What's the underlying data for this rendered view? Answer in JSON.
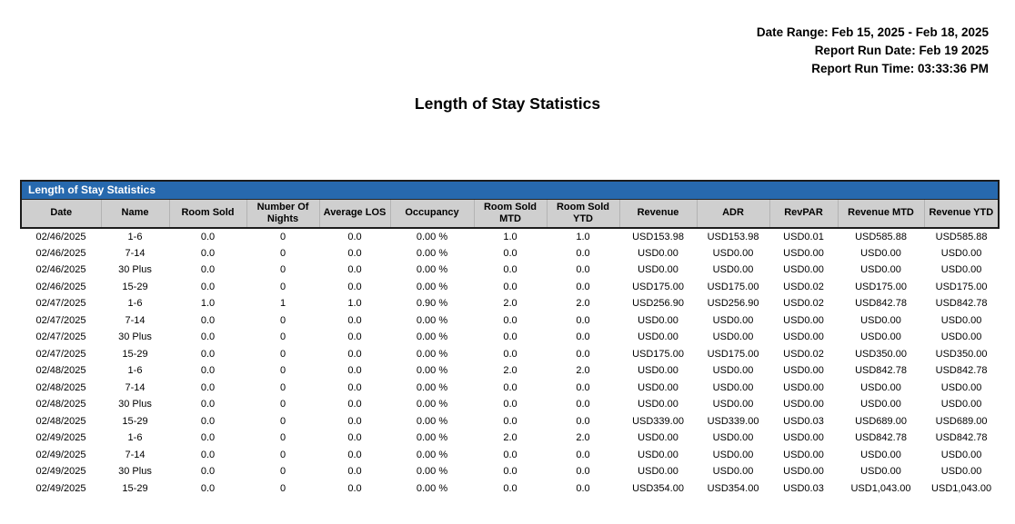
{
  "report_meta": {
    "date_range": "Date Range: Feb 15, 2025 - Feb 18, 2025",
    "run_date": "Report Run Date: Feb 19 2025",
    "run_time": "Report Run Time: 03:33:36 PM"
  },
  "page_title": "Length of Stay Statistics",
  "colors": {
    "section_bar_blue": "#2769ae",
    "column_header_gray": "#cfcfcf",
    "border_black": "#1c1c1c"
  },
  "table": {
    "section_title": "Length of Stay Statistics",
    "columns": [
      "Date",
      "Name",
      "Room Sold",
      "Number Of Nights",
      "Average LOS",
      "Occupancy",
      "Room Sold MTD",
      "Room Sold YTD",
      "Revenue",
      "ADR",
      "RevPAR",
      "Revenue MTD",
      "Revenue YTD"
    ],
    "column_keys": [
      "date",
      "name",
      "room-sold",
      "number-of-nights",
      "average-los",
      "occupancy",
      "room-sold-mtd",
      "room-sold-ytd",
      "revenue",
      "adr",
      "revpar",
      "revenue-mtd",
      "revenue-ytd"
    ],
    "rows": [
      [
        "02/46/2025",
        "1-6",
        "0.0",
        "0",
        "0.0",
        "0.00 %",
        "1.0",
        "1.0",
        "USD153.98",
        "USD153.98",
        "USD0.01",
        "USD585.88",
        "USD585.88"
      ],
      [
        "02/46/2025",
        "7-14",
        "0.0",
        "0",
        "0.0",
        "0.00 %",
        "0.0",
        "0.0",
        "USD0.00",
        "USD0.00",
        "USD0.00",
        "USD0.00",
        "USD0.00"
      ],
      [
        "02/46/2025",
        "30 Plus",
        "0.0",
        "0",
        "0.0",
        "0.00 %",
        "0.0",
        "0.0",
        "USD0.00",
        "USD0.00",
        "USD0.00",
        "USD0.00",
        "USD0.00"
      ],
      [
        "02/46/2025",
        "15-29",
        "0.0",
        "0",
        "0.0",
        "0.00 %",
        "0.0",
        "0.0",
        "USD175.00",
        "USD175.00",
        "USD0.02",
        "USD175.00",
        "USD175.00"
      ],
      [
        "02/47/2025",
        "1-6",
        "1.0",
        "1",
        "1.0",
        "0.90 %",
        "2.0",
        "2.0",
        "USD256.90",
        "USD256.90",
        "USD0.02",
        "USD842.78",
        "USD842.78"
      ],
      [
        "02/47/2025",
        "7-14",
        "0.0",
        "0",
        "0.0",
        "0.00 %",
        "0.0",
        "0.0",
        "USD0.00",
        "USD0.00",
        "USD0.00",
        "USD0.00",
        "USD0.00"
      ],
      [
        "02/47/2025",
        "30 Plus",
        "0.0",
        "0",
        "0.0",
        "0.00 %",
        "0.0",
        "0.0",
        "USD0.00",
        "USD0.00",
        "USD0.00",
        "USD0.00",
        "USD0.00"
      ],
      [
        "02/47/2025",
        "15-29",
        "0.0",
        "0",
        "0.0",
        "0.00 %",
        "0.0",
        "0.0",
        "USD175.00",
        "USD175.00",
        "USD0.02",
        "USD350.00",
        "USD350.00"
      ],
      [
        "02/48/2025",
        "1-6",
        "0.0",
        "0",
        "0.0",
        "0.00 %",
        "2.0",
        "2.0",
        "USD0.00",
        "USD0.00",
        "USD0.00",
        "USD842.78",
        "USD842.78"
      ],
      [
        "02/48/2025",
        "7-14",
        "0.0",
        "0",
        "0.0",
        "0.00 %",
        "0.0",
        "0.0",
        "USD0.00",
        "USD0.00",
        "USD0.00",
        "USD0.00",
        "USD0.00"
      ],
      [
        "02/48/2025",
        "30 Plus",
        "0.0",
        "0",
        "0.0",
        "0.00 %",
        "0.0",
        "0.0",
        "USD0.00",
        "USD0.00",
        "USD0.00",
        "USD0.00",
        "USD0.00"
      ],
      [
        "02/48/2025",
        "15-29",
        "0.0",
        "0",
        "0.0",
        "0.00 %",
        "0.0",
        "0.0",
        "USD339.00",
        "USD339.00",
        "USD0.03",
        "USD689.00",
        "USD689.00"
      ],
      [
        "02/49/2025",
        "1-6",
        "0.0",
        "0",
        "0.0",
        "0.00 %",
        "2.0",
        "2.0",
        "USD0.00",
        "USD0.00",
        "USD0.00",
        "USD842.78",
        "USD842.78"
      ],
      [
        "02/49/2025",
        "7-14",
        "0.0",
        "0",
        "0.0",
        "0.00 %",
        "0.0",
        "0.0",
        "USD0.00",
        "USD0.00",
        "USD0.00",
        "USD0.00",
        "USD0.00"
      ],
      [
        "02/49/2025",
        "30 Plus",
        "0.0",
        "0",
        "0.0",
        "0.00 %",
        "0.0",
        "0.0",
        "USD0.00",
        "USD0.00",
        "USD0.00",
        "USD0.00",
        "USD0.00"
      ],
      [
        "02/49/2025",
        "15-29",
        "0.0",
        "0",
        "0.0",
        "0.00 %",
        "0.0",
        "0.0",
        "USD354.00",
        "USD354.00",
        "USD0.03",
        "USD1,043.00",
        "USD1,043.00"
      ]
    ]
  }
}
